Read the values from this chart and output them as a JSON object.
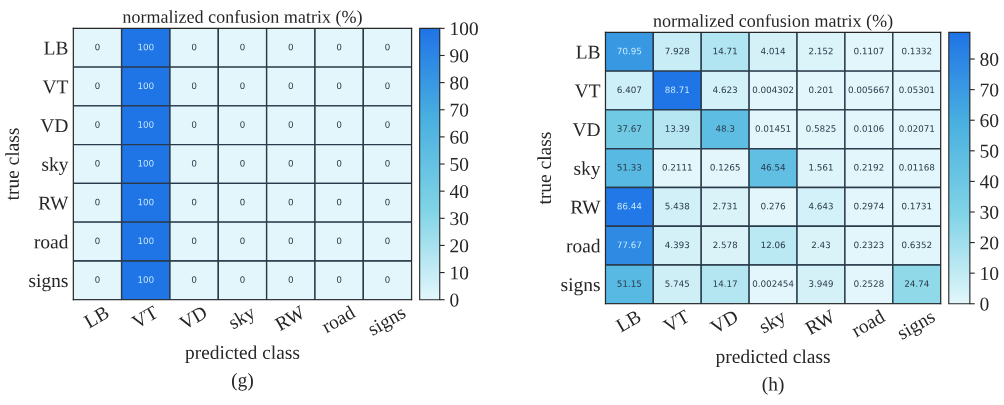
{
  "chart_data": [
    {
      "type": "heatmap",
      "title": "normalized confusion matrix (%)",
      "xlabel": "predicted class",
      "ylabel": "true class",
      "annotations": [
        "(g)"
      ],
      "categories": [
        "LB",
        "VT",
        "VD",
        "sky",
        "RW",
        "road",
        "signs"
      ],
      "y_categories": [
        "LB",
        "VT",
        "VD",
        "sky",
        "RW",
        "road",
        "signs"
      ],
      "cells": [
        [
          0,
          100,
          0,
          0,
          0,
          0,
          0
        ],
        [
          0,
          100,
          0,
          0,
          0,
          0,
          0
        ],
        [
          0,
          100,
          0,
          0,
          0,
          0,
          0
        ],
        [
          0,
          100,
          0,
          0,
          0,
          0,
          0
        ],
        [
          0,
          100,
          0,
          0,
          0,
          0,
          0
        ],
        [
          0,
          100,
          0,
          0,
          0,
          0,
          0
        ],
        [
          0,
          100,
          0,
          0,
          0,
          0,
          0
        ]
      ],
      "data_labels": true,
      "clim": [
        0,
        100
      ],
      "cticks": [
        0,
        10,
        20,
        30,
        40,
        50,
        60,
        70,
        80,
        90,
        100
      ]
    },
    {
      "type": "heatmap",
      "title": "normalized confusion matrix (%)",
      "xlabel": "predicted class",
      "ylabel": "true class",
      "annotations": [
        "(h)"
      ],
      "categories": [
        "LB",
        "VT",
        "VD",
        "sky",
        "RW",
        "road",
        "signs"
      ],
      "y_categories": [
        "LB",
        "VT",
        "VD",
        "sky",
        "RW",
        "road",
        "signs"
      ],
      "cells": [
        [
          70.95,
          7.928,
          14.71,
          4.014,
          2.152,
          0.1107,
          0.1332
        ],
        [
          6.407,
          88.71,
          4.623,
          0.004302,
          0.201,
          0.005667,
          0.05301
        ],
        [
          37.67,
          13.39,
          48.3,
          0.01451,
          0.5825,
          0.0106,
          0.02071
        ],
        [
          51.33,
          0.2111,
          0.1265,
          46.54,
          1.561,
          0.2192,
          0.01168
        ],
        [
          86.44,
          5.438,
          2.731,
          0.276,
          4.643,
          0.2974,
          0.1731
        ],
        [
          77.67,
          4.393,
          2.578,
          12.06,
          2.43,
          0.2323,
          0.6352
        ],
        [
          51.15,
          5.745,
          14.17,
          0.002454,
          3.949,
          0.2528,
          24.74
        ]
      ],
      "data_labels": true,
      "clim": [
        0,
        88.71
      ],
      "cticks": [
        0,
        10,
        20,
        30,
        40,
        50,
        60,
        70,
        80
      ]
    }
  ]
}
